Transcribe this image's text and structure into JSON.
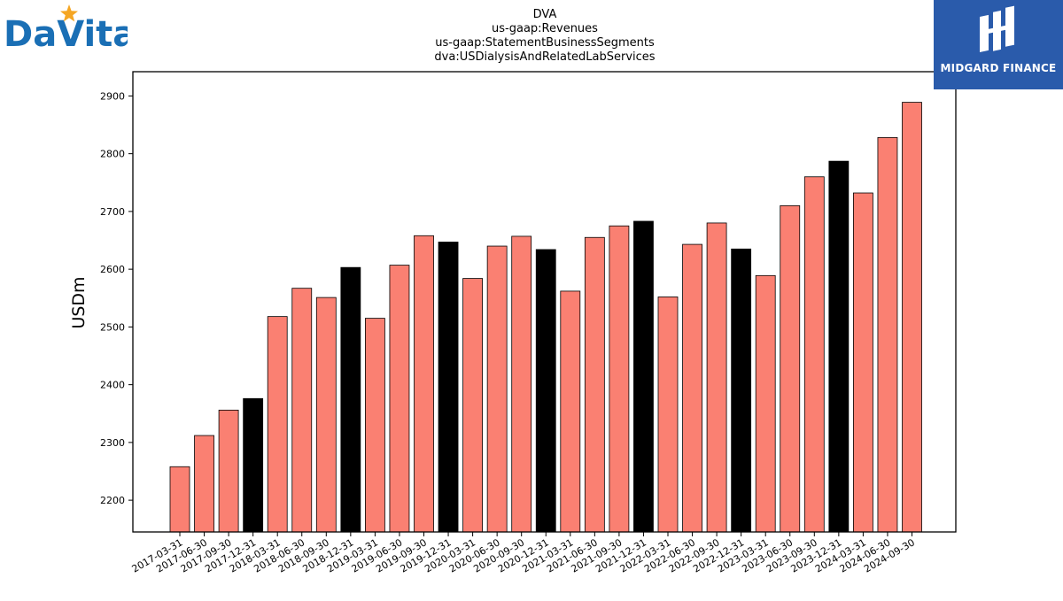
{
  "logos": {
    "left_text": "DaVita",
    "right_text": "MIDGARD FINANCE"
  },
  "colors": {
    "regular_bar": "#fa8072",
    "year_end_bar": "#000000",
    "bar_edge": "#000000",
    "davita_blue": "#1a6fb5",
    "davita_star": "#f5a623",
    "midgard_bg": "#2a5bab"
  },
  "chart_data": {
    "type": "bar",
    "title_lines": [
      "DVA",
      "us-gaap:Revenues",
      "us-gaap:StatementBusinessSegments",
      "dva:USDialysisAndRelatedLabServices"
    ],
    "xlabel": "",
    "ylabel": "USDm",
    "ylim": [
      2145,
      2942
    ],
    "yticks": [
      2200,
      2300,
      2400,
      2500,
      2600,
      2700,
      2800,
      2900
    ],
    "grid": false,
    "categories": [
      "2017-03-31",
      "2017-06-30",
      "2017-09-30",
      "2017-12-31",
      "2018-03-31",
      "2018-06-30",
      "2018-09-30",
      "2018-12-31",
      "2019-03-31",
      "2019-06-30",
      "2019-09-30",
      "2019-12-31",
      "2020-03-31",
      "2020-06-30",
      "2020-09-30",
      "2020-12-31",
      "2021-03-31",
      "2021-06-30",
      "2021-09-30",
      "2021-12-31",
      "2022-03-31",
      "2022-06-30",
      "2022-09-30",
      "2022-12-31",
      "2023-03-31",
      "2023-06-30",
      "2023-09-30",
      "2023-12-31",
      "2024-03-31",
      "2024-06-30",
      "2024-09-30"
    ],
    "values": [
      2258,
      2312,
      2356,
      2376,
      2518,
      2567,
      2551,
      2603,
      2515,
      2607,
      2658,
      2647,
      2584,
      2640,
      2657,
      2634,
      2562,
      2655,
      2675,
      2683,
      2552,
      2643,
      2680,
      2635,
      2589,
      2710,
      2760,
      2787,
      2732,
      2828,
      2889
    ]
  }
}
